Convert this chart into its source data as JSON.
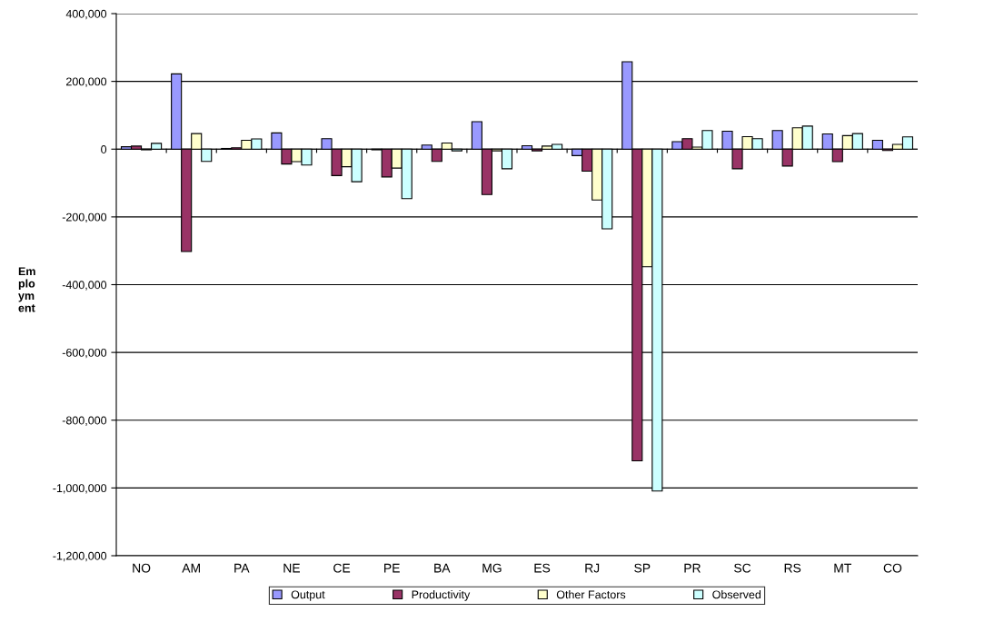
{
  "chart_data": {
    "type": "bar",
    "ylabel": "Em\nplo\nym\nent",
    "categories": [
      "NO",
      "AM",
      "PA",
      "NE",
      "CE",
      "PE",
      "BA",
      "MG",
      "ES",
      "RJ",
      "SP",
      "PR",
      "SC",
      "RS",
      "MT",
      "CO"
    ],
    "series": [
      {
        "name": "Output",
        "color": "#9999ff",
        "values": [
          7000,
          222000,
          2000,
          48000,
          31000,
          -2000,
          12000,
          81000,
          10000,
          -19000,
          258000,
          22000,
          53000,
          55000,
          45000,
          26000
        ]
      },
      {
        "name": "Productivity",
        "color": "#993366",
        "values": [
          9000,
          -302000,
          4000,
          -44000,
          -78000,
          -82000,
          -36000,
          -134000,
          -5000,
          -65000,
          -920000,
          31000,
          -58000,
          -50000,
          -37000,
          -4000
        ]
      },
      {
        "name": "Other Factors",
        "color": "#ffffcc",
        "values": [
          -2000,
          46000,
          26000,
          -37000,
          -52000,
          -56000,
          18000,
          -5000,
          9000,
          -150000,
          -347000,
          6000,
          37000,
          63000,
          40000,
          14000
        ]
      },
      {
        "name": "Observed",
        "color": "#ccffff",
        "values": [
          17000,
          -36000,
          30000,
          -47000,
          -96000,
          -146000,
          -5000,
          -58000,
          14000,
          -235000,
          -1009000,
          55000,
          31000,
          68000,
          46000,
          36000
        ]
      }
    ],
    "ylim": [
      -1200000,
      400000
    ],
    "yticks": [
      {
        "value": -1200000,
        "label": "-1,200,000"
      },
      {
        "value": -1000000,
        "label": "-1,000,000"
      },
      {
        "value": -800000,
        "label": "-800,000"
      },
      {
        "value": -600000,
        "label": "-600,000"
      },
      {
        "value": -400000,
        "label": "-400,000"
      },
      {
        "value": -200000,
        "label": "-200,000"
      },
      0,
      {
        "value": 200000,
        "label": "200,000"
      },
      {
        "value": 400000,
        "label": "400,000"
      }
    ],
    "grid": "y",
    "legend": "bottom"
  }
}
